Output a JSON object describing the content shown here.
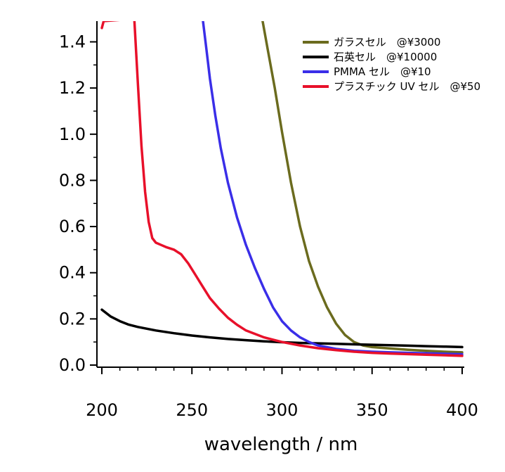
{
  "chart_data": {
    "type": "line",
    "title": "",
    "xlabel": "wavelength / nm",
    "ylabel": "",
    "xlim": [
      200,
      400
    ],
    "ylim": [
      0,
      1.5
    ],
    "x_ticks": [
      200,
      250,
      300,
      350,
      400
    ],
    "x_tick_labels": [
      "200",
      "250",
      "300",
      "350",
      "400"
    ],
    "y_ticks": [
      0,
      0.2,
      0.4,
      0.6,
      0.8,
      1.0,
      1.2,
      1.4
    ],
    "y_tick_labels": [
      "0.0",
      "0.2",
      "0.4",
      "0.6",
      "0.8",
      "1.0",
      "1.2",
      "1.4"
    ],
    "grid": false,
    "legend_position": "top-right",
    "series": [
      {
        "name": "ガラスセル　@¥3000",
        "color": "#6b6b1e",
        "x": [
          289,
          292,
          296,
          300,
          305,
          310,
          315,
          320,
          325,
          330,
          335,
          340,
          345,
          350,
          360,
          370,
          380,
          390,
          400
        ],
        "y": [
          1.5,
          1.37,
          1.2,
          1.01,
          0.79,
          0.6,
          0.45,
          0.34,
          0.25,
          0.18,
          0.13,
          0.1,
          0.085,
          0.078,
          0.072,
          0.066,
          0.062,
          0.058,
          0.055
        ]
      },
      {
        "name": "石英セル　@¥10000",
        "color": "#000000",
        "x": [
          200,
          205,
          210,
          215,
          220,
          230,
          240,
          250,
          260,
          270,
          280,
          290,
          300,
          310,
          320,
          330,
          340,
          350,
          360,
          370,
          380,
          390,
          400
        ],
        "y": [
          0.24,
          0.21,
          0.19,
          0.175,
          0.165,
          0.15,
          0.138,
          0.128,
          0.12,
          0.113,
          0.108,
          0.103,
          0.099,
          0.096,
          0.094,
          0.092,
          0.09,
          0.088,
          0.086,
          0.084,
          0.082,
          0.08,
          0.078
        ]
      },
      {
        "name": "PMMA セル　@¥10",
        "color": "#3a2ee8",
        "x": [
          256,
          258,
          260,
          263,
          266,
          270,
          275,
          280,
          285,
          290,
          295,
          300,
          305,
          310,
          315,
          320,
          330,
          340,
          350,
          360,
          370,
          380,
          390,
          400
        ],
        "y": [
          1.5,
          1.37,
          1.24,
          1.08,
          0.94,
          0.79,
          0.64,
          0.52,
          0.42,
          0.33,
          0.25,
          0.19,
          0.15,
          0.12,
          0.1,
          0.085,
          0.07,
          0.062,
          0.058,
          0.055,
          0.053,
          0.051,
          0.049,
          0.047
        ]
      },
      {
        "name": "プラスチック UV セル　@¥50",
        "color": "#e8102a",
        "x": [
          200,
          201,
          218,
          220,
          222,
          224,
          226,
          228,
          230,
          233,
          236,
          240,
          244,
          248,
          252,
          256,
          260,
          265,
          270,
          275,
          280,
          290,
          300,
          310,
          320,
          330,
          340,
          350,
          360,
          380,
          400
        ],
        "y": [
          1.46,
          1.49,
          1.5,
          1.22,
          0.95,
          0.75,
          0.62,
          0.55,
          0.53,
          0.52,
          0.51,
          0.5,
          0.48,
          0.44,
          0.39,
          0.34,
          0.29,
          0.245,
          0.205,
          0.175,
          0.15,
          0.12,
          0.1,
          0.085,
          0.073,
          0.065,
          0.058,
          0.053,
          0.05,
          0.045,
          0.04
        ]
      }
    ]
  }
}
